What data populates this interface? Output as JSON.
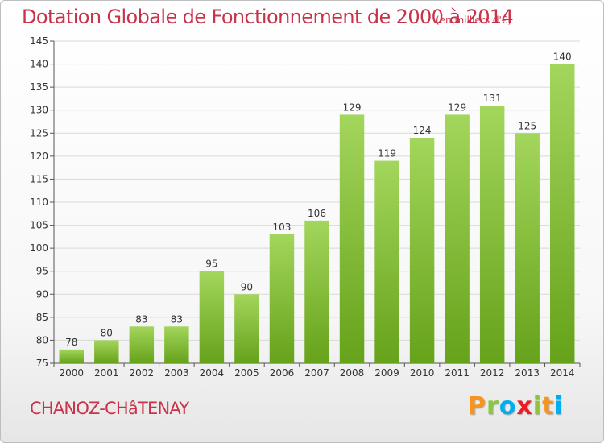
{
  "title": "Dotation Globale de Fonctionnement de 2000 à 2014",
  "subtitle": "(en milliers d'€)",
  "commune": "CHANOZ-CHâTENAY",
  "logo": {
    "letters": [
      "P",
      "r",
      "o",
      "x",
      "i",
      "t",
      "i"
    ],
    "colors": [
      "#f7941d",
      "#8cc63f",
      "#00aeef",
      "#ed1c24",
      "#8cc63f",
      "#f7941d",
      "#00aeef"
    ]
  },
  "colors": {
    "text": "#c8334a",
    "bar_light": "#a3d65c",
    "bar_dark": "#66a21a",
    "grid": "#d9d9d9"
  },
  "chart_data": {
    "type": "bar",
    "categories": [
      "2000",
      "2001",
      "2002",
      "2003",
      "2004",
      "2005",
      "2006",
      "2007",
      "2008",
      "2009",
      "2010",
      "2011",
      "2012",
      "2013",
      "2014"
    ],
    "values": [
      78,
      80,
      83,
      83,
      95,
      90,
      103,
      106,
      129,
      119,
      124,
      129,
      131,
      125,
      140
    ],
    "ylim": [
      75,
      145
    ],
    "yticks": [
      75,
      80,
      85,
      90,
      95,
      100,
      105,
      110,
      115,
      120,
      125,
      130,
      135,
      140,
      145
    ],
    "grid": true,
    "data_labels": true
  }
}
